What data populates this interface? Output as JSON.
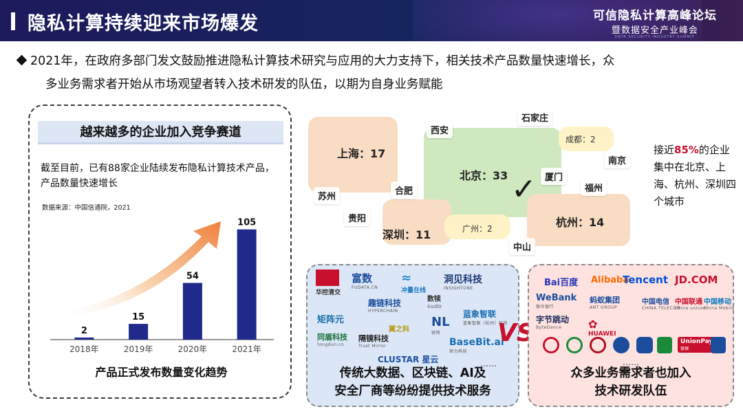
{
  "header": {
    "title": "隐私计算持续迎来市场爆发",
    "forum_line1": "可信隐私计算高峰论坛",
    "forum_line2": "暨数据安全产业峰会",
    "forum_line3": "DATA SECURITY INDUSTRY SUMMIT"
  },
  "intro": {
    "line1": "2021年，在政府多部门发文鼓励推进隐私计算技术研究与应用的大力支持下，相关技术产品数量快速增长，众",
    "line2": "多业务需求者开始从市场观望者转入技术研发的队伍，以期为自身业务赋能"
  },
  "left_card": {
    "banner": "越来越多的企业加入竞争赛道",
    "desc": "截至目前，已有88家企业陆续发布隐私计算技术产品，产品数量快速增长",
    "source": "数据来源：中国信通院，2021",
    "chart_title": "产品正式发布数量变化趋势"
  },
  "chart_data": {
    "type": "bar",
    "categories": [
      "2018年",
      "2019年",
      "2020年",
      "2021年"
    ],
    "values": [
      2,
      15,
      54,
      105
    ],
    "title": "产品正式发布数量变化趋势",
    "xlabel": "",
    "ylabel": "",
    "ylim": [
      0,
      110
    ],
    "bar_color": "#1f2a8a",
    "trend_arrow": true
  },
  "map": {
    "beijing": "北京：33",
    "shanghai": "上海：17",
    "shenzhen": "深圳：11",
    "hangzhou": "杭州：14",
    "chengdu": "成都：2",
    "guangzhou": "广州：2",
    "cities": {
      "xian": "西安",
      "shijiazhuang": "石家庄",
      "nanjing": "南京",
      "xiamen": "厦门",
      "fuzhou": "福州",
      "suzhou": "苏州",
      "hefei": "合肥",
      "guiyang": "贵阳",
      "zhongshan": "中山"
    }
  },
  "note": {
    "pre": "接近",
    "pct": "85%",
    "post": "的企业集中在北京、上海、杭州、深圳四个城市"
  },
  "vendors_blue": {
    "caption_line1": "传统大数据、区块链、AI及",
    "caption_line2": "安全厂商等纷纷提供技术服务",
    "dots": "……",
    "logos": {
      "huakong": "华控清交",
      "fushu": "富数",
      "fushu_sub": "FUDATA.CN",
      "chongying": "冲量在线",
      "dongjian": "洞见科技",
      "dongjian_sub": "INSIGHTONE",
      "shudu": "数犊",
      "shudu_sub": "sudo",
      "qulian": "趣链科技",
      "qulian_sub": "HYPERCHAIN",
      "juzhen": "矩阵元",
      "lanxiang": "蓝象智联",
      "lanxiang_sub": "蓝象智联（杭州）科技",
      "xiaozhi": "翼之科",
      "ruifeng": "锐鸣",
      "ruifeng_sub": "NL",
      "baseline": "BaseBit.ai",
      "baseline_sub": "矩力科技",
      "tongdun": "同盾科技",
      "tongdun_sub": "tongdun.cn",
      "gejing": "隔镜科技",
      "gejing_sub": "Trust Mirror",
      "clustar": "CLUSTAR 星云"
    }
  },
  "vendors_red": {
    "caption_line1": "众多业务需求者也加入",
    "caption_line2": "技术研发队伍",
    "dots": "……",
    "logos": {
      "baidu": "Bai百度",
      "alibaba": "Alibaba",
      "tencent": "Tencent",
      "jd": "JD.COM",
      "webank": "WeBank",
      "webank_sub": "微众银行",
      "ant": "蚂蚁集团",
      "ant_sub": "ANT GROUP",
      "telecom": "中国电信",
      "telecom_sub": "CHINA TELECOM",
      "unicom": "中国联通",
      "unicom_sub": "China unicom",
      "mobile": "中国移动",
      "mobile_sub": "China Mobile",
      "bytedance": "字节跳动",
      "bytedance_sub": "ByteDance",
      "huawei": "HUAWEI",
      "unionpay": "UnionPay",
      "unionpay_sub": "银联"
    }
  },
  "vs": "VS"
}
